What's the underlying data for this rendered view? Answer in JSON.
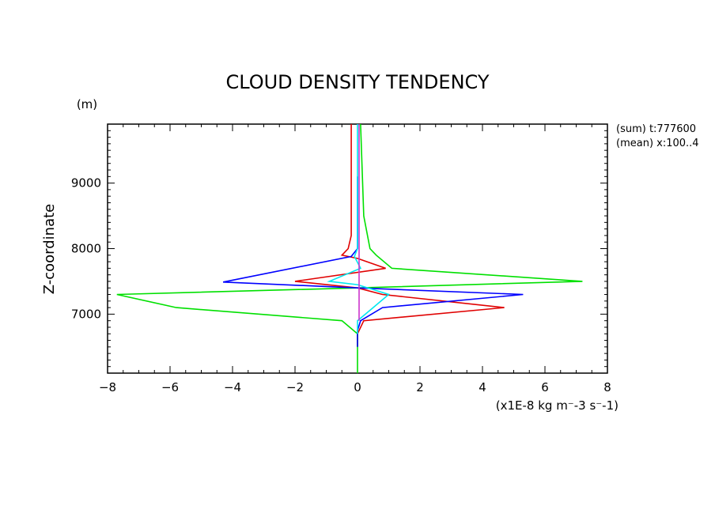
{
  "chart_data": {
    "type": "line",
    "title": "CLOUD DENSITY TENDENCY",
    "xlabel": "(x1E-8 kg m⁻-3 s⁻-1)",
    "ylabel": "Z-coordinate",
    "yunit": "(m)",
    "xlim": [
      -8,
      8
    ],
    "ylim": [
      6100,
      9900
    ],
    "xticks": [
      -8,
      -6,
      -4,
      -2,
      0,
      2,
      4,
      6,
      8
    ],
    "yticks": [
      7000,
      8000,
      9000
    ],
    "grid": false,
    "annotations": [
      "(sum) t:777600",
      "(mean) x:100..4"
    ],
    "series": [
      {
        "color": "#e00000",
        "points": [
          [
            -0.2,
            9900
          ],
          [
            -0.2,
            8200
          ],
          [
            -0.3,
            8000
          ],
          [
            -0.5,
            7900
          ],
          [
            0,
            7850
          ],
          [
            0.9,
            7700
          ],
          [
            -2.0,
            7500
          ],
          [
            0,
            7400
          ],
          [
            0.8,
            7300
          ],
          [
            4.7,
            7100
          ],
          [
            0.2,
            6900
          ],
          [
            0,
            6700
          ],
          [
            0,
            6500
          ]
        ]
      },
      {
        "color": "#00e000",
        "points": [
          [
            0.1,
            9900
          ],
          [
            0.2,
            8500
          ],
          [
            0.4,
            8000
          ],
          [
            0.6,
            7900
          ],
          [
            1.1,
            7700
          ],
          [
            7.2,
            7500
          ],
          [
            0,
            7400
          ],
          [
            -7.7,
            7300
          ],
          [
            -5.8,
            7100
          ],
          [
            -0.5,
            6900
          ],
          [
            0,
            6700
          ],
          [
            0,
            6100
          ]
        ]
      },
      {
        "color": "#0000ff",
        "points": [
          [
            0,
            9100
          ],
          [
            0,
            8000
          ],
          [
            -0.2,
            7880
          ],
          [
            -4.3,
            7490
          ],
          [
            0,
            7400
          ],
          [
            5.3,
            7300
          ],
          [
            0.8,
            7100
          ],
          [
            0.1,
            6900
          ],
          [
            0,
            6750
          ],
          [
            0,
            6500
          ]
        ]
      },
      {
        "color": "#00e8f0",
        "points": [
          [
            0,
            9900
          ],
          [
            0,
            8000
          ],
          [
            -0.1,
            7880
          ],
          [
            0.1,
            7700
          ],
          [
            -0.9,
            7500
          ],
          [
            0,
            7450
          ],
          [
            1.0,
            7300
          ],
          [
            0.5,
            7100
          ],
          [
            0,
            6900
          ],
          [
            0,
            6700
          ]
        ]
      },
      {
        "color": "#cc33cc",
        "points": [
          [
            0.05,
            9900
          ],
          [
            0.05,
            8000
          ],
          [
            0.05,
            7500
          ],
          [
            0.05,
            7000
          ],
          [
            0.05,
            6900
          ]
        ]
      }
    ]
  }
}
